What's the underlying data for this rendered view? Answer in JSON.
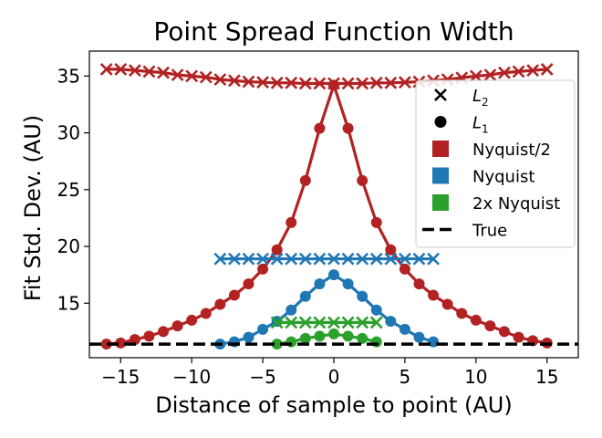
{
  "chart_data": {
    "type": "line",
    "title": "Point Spread Function Width",
    "xlabel": "Distance of sample to point (AU)",
    "ylabel": "Fit Std. Dev. (AU)",
    "xlim": [
      -17.2,
      17.2
    ],
    "ylim": [
      10.2,
      37.2
    ],
    "xticks": [
      -15,
      -10,
      -5,
      0,
      5,
      10,
      15
    ],
    "xtick_labels": [
      "−15",
      "−10",
      "−5",
      "0",
      "5",
      "10",
      "15"
    ],
    "yticks": [
      15,
      20,
      25,
      30,
      35
    ],
    "ytick_labels": [
      "15",
      "20",
      "25",
      "30",
      "35"
    ],
    "grid": false,
    "legend_position": "right",
    "series": [
      {
        "group": "Nyquist/2",
        "metric": "L2",
        "color": "#b22222",
        "marker": "x",
        "x": [
          -16,
          -15,
          -14,
          -13,
          -12,
          -11,
          -10,
          -9,
          -8,
          -7,
          -6,
          -5,
          -4,
          -3,
          -2,
          -1,
          0,
          1,
          2,
          3,
          4,
          5,
          6,
          7,
          8,
          9,
          10,
          11,
          12,
          13,
          14,
          15
        ],
        "values": [
          35.6,
          35.6,
          35.5,
          35.4,
          35.3,
          35.1,
          35.0,
          34.9,
          34.7,
          34.6,
          34.5,
          34.45,
          34.4,
          34.4,
          34.35,
          34.35,
          34.35,
          34.35,
          34.35,
          34.4,
          34.4,
          34.45,
          34.5,
          34.6,
          34.7,
          34.85,
          35.0,
          35.1,
          35.3,
          35.4,
          35.5,
          35.6
        ]
      },
      {
        "group": "Nyquist/2",
        "metric": "L1",
        "color": "#b22222",
        "marker": "o",
        "x": [
          -16,
          -15,
          -14,
          -13,
          -12,
          -11,
          -10,
          -9,
          -8,
          -7,
          -6,
          -5,
          -4,
          -3,
          -2,
          -1,
          0,
          1,
          2,
          3,
          4,
          5,
          6,
          7,
          8,
          9,
          10,
          11,
          12,
          13,
          14,
          15
        ],
        "values": [
          11.4,
          11.5,
          11.8,
          12.1,
          12.5,
          13.0,
          13.5,
          14.1,
          14.9,
          15.7,
          16.7,
          18.0,
          19.7,
          22.1,
          25.8,
          30.4,
          34.2,
          30.4,
          25.8,
          22.1,
          19.7,
          18.0,
          16.7,
          15.7,
          14.9,
          14.1,
          13.5,
          13.0,
          12.5,
          12.0,
          11.7,
          11.5
        ]
      },
      {
        "group": "Nyquist",
        "metric": "L2",
        "color": "#1f77b4",
        "marker": "x",
        "x": [
          -8,
          -7,
          -6,
          -5,
          -4,
          -3,
          -2,
          -1,
          0,
          1,
          2,
          3,
          4,
          5,
          6,
          7
        ],
        "values": [
          18.9,
          18.9,
          18.9,
          18.9,
          18.9,
          18.9,
          18.9,
          18.9,
          18.9,
          18.9,
          18.9,
          18.9,
          18.9,
          18.9,
          18.9,
          18.9
        ]
      },
      {
        "group": "Nyquist",
        "metric": "L1",
        "color": "#1f77b4",
        "marker": "o",
        "x": [
          -8,
          -7,
          -6,
          -5,
          -4,
          -3,
          -2,
          -1,
          0,
          1,
          2,
          3,
          4,
          5,
          6,
          7
        ],
        "values": [
          11.4,
          11.6,
          12.0,
          12.7,
          13.4,
          14.4,
          15.6,
          16.7,
          17.5,
          16.7,
          15.6,
          14.4,
          13.4,
          12.7,
          12.0,
          11.6
        ]
      },
      {
        "group": "2x Nyquist",
        "metric": "L2",
        "color": "#2ca02c",
        "marker": "x",
        "x": [
          -4,
          -3,
          -2,
          -1,
          0,
          1,
          2,
          3
        ],
        "values": [
          13.3,
          13.3,
          13.3,
          13.3,
          13.3,
          13.3,
          13.3,
          13.3
        ]
      },
      {
        "group": "2x Nyquist",
        "metric": "L1",
        "color": "#2ca02c",
        "marker": "o",
        "x": [
          -4,
          -3,
          -2,
          -1,
          0,
          1,
          2,
          3
        ],
        "values": [
          11.4,
          11.6,
          11.9,
          12.1,
          12.3,
          12.1,
          11.9,
          11.6
        ]
      }
    ],
    "reference_line": {
      "label": "True",
      "y": 11.4,
      "style": "dashed",
      "color": "#000000"
    },
    "legend": [
      {
        "kind": "cross",
        "label": "$L_2$",
        "label_main": "L",
        "label_sub": "2",
        "color": "#000000"
      },
      {
        "kind": "dot",
        "label": "$L_1$",
        "label_main": "L",
        "label_sub": "1",
        "color": "#000000"
      },
      {
        "kind": "square",
        "label": "Nyquist/2",
        "color": "#b22222"
      },
      {
        "kind": "square",
        "label": "Nyquist",
        "color": "#1f77b4"
      },
      {
        "kind": "square",
        "label": "2x Nyquist",
        "color": "#2ca02c"
      },
      {
        "kind": "dash",
        "label": "True",
        "color": "#000000"
      }
    ]
  }
}
